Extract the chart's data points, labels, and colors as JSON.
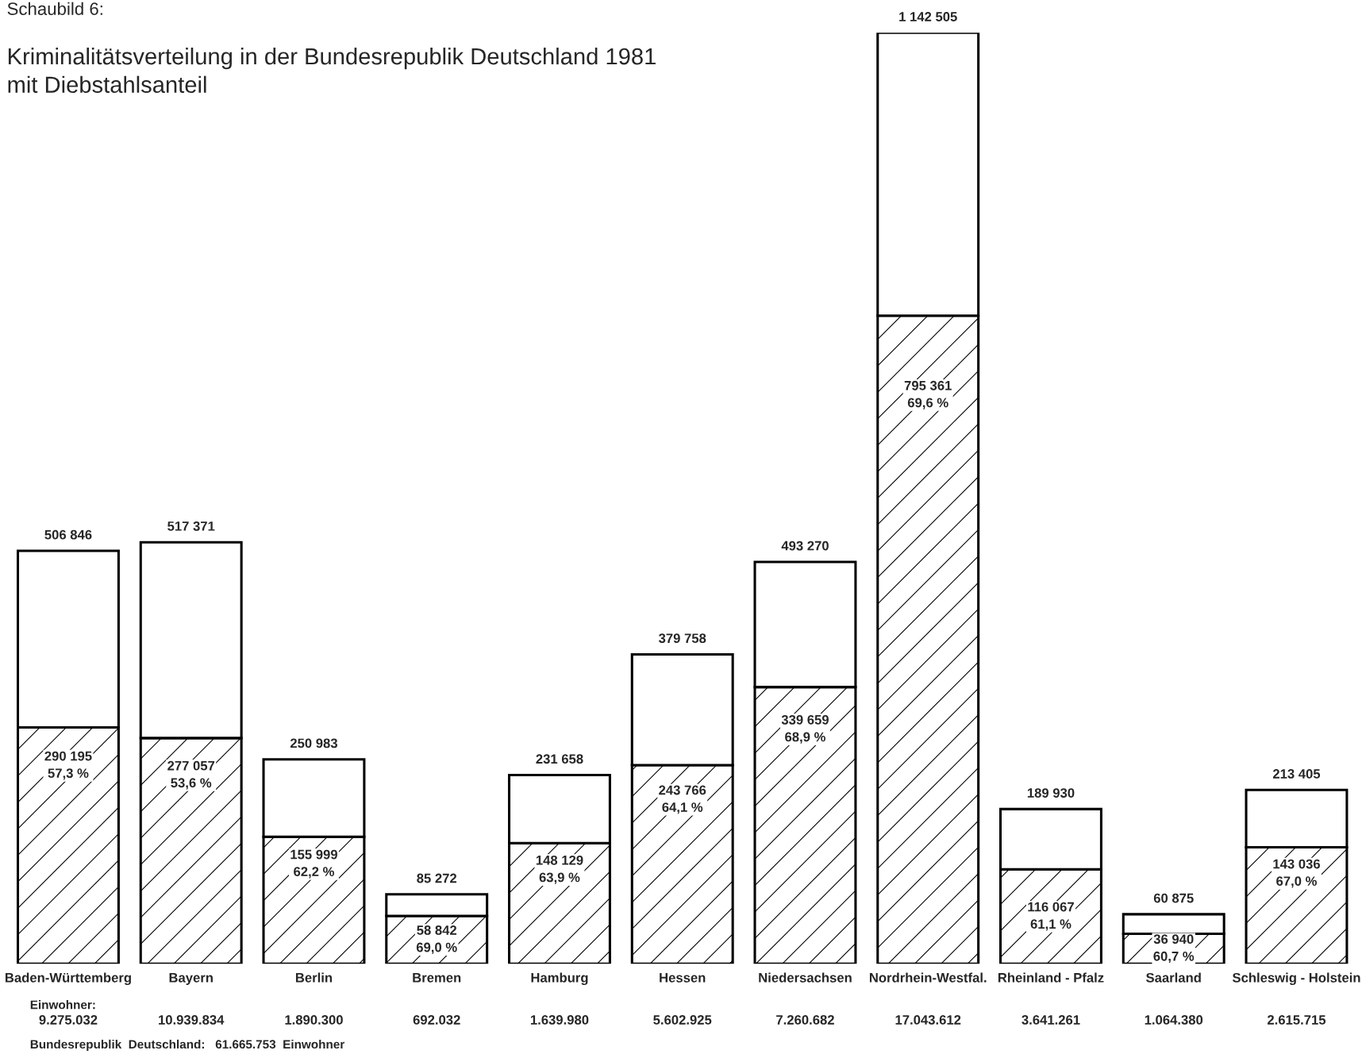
{
  "chart_data": {
    "type": "bar",
    "stacked": true,
    "title": "Kriminalitätsverteilung in der Bundesrepublik Deutschland 1981\nmit Diebstahlsanteil",
    "categories": [
      "Baden-Württemberg",
      "Bayern",
      "Berlin",
      "Bremen",
      "Hamburg",
      "Hessen",
      "Niedersachsen",
      "Nordrhein-Westfal.",
      "Rheinland - Pfalz",
      "Saarland",
      "Schleswig - Holstein"
    ],
    "series": [
      {
        "color": "#000000",
        "values": [
          290195,
          277057,
          155999,
          58842,
          148129,
          243766,
          339659,
          795361,
          116067,
          36940,
          143036
        ],
        "value_labels": [
          "290 195\n57,3 %",
          "277 057\n53,6 %",
          "155 999\n62,2 %",
          "58 842\n69,0 %",
          "148 129\n63,9 %",
          "243 766\n64,1 %",
          "339 659\n68,9 %",
          "795 361\n69,6 %",
          "116 067\n61,1 %",
          "36 940\n60,7 %",
          "143 036\n67,0 %"
        ]
      },
      {
        "color": "#ffffff",
        "values": [
          216651,
          240314,
          94984,
          26430,
          83529,
          135992,
          153611,
          347144,
          73863,
          23935,
          70369
        ]
      }
    ],
    "totals": [
      "506 846",
      "517 371",
      "250 983",
      "85 272",
      "231 658",
      "379 758",
      "493 270",
      "1 142 505",
      "189 930",
      "60 875",
      "213 405"
    ],
    "annotations": [
      "Schaubild 6:",
      "Einwohner:",
      "9.275.032",
      "10.939.834",
      "1.890.300",
      "692.032",
      "1.639.980",
      "5.602.925",
      "7.260.682",
      "17.043.612",
      "3.641.261",
      "1.064.380",
      "2.615.715",
      "Bundesrepublik  Deutschland:   61.665.753  Einwohner"
    ],
    "grid": false
  }
}
